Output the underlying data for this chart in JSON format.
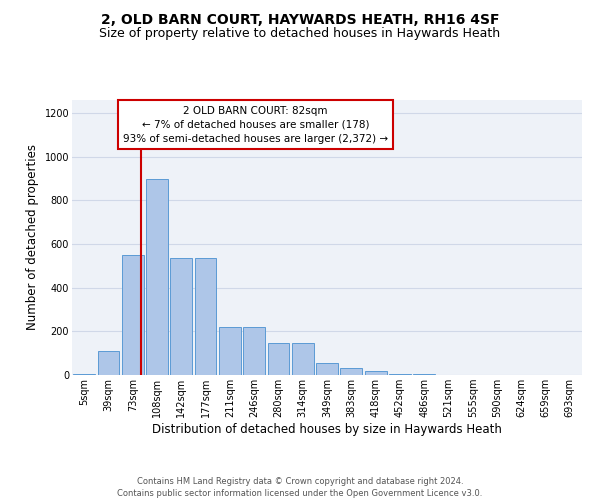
{
  "title_line1": "2, OLD BARN COURT, HAYWARDS HEATH, RH16 4SF",
  "title_line2": "Size of property relative to detached houses in Haywards Heath",
  "xlabel": "Distribution of detached houses by size in Haywards Heath",
  "ylabel": "Number of detached properties",
  "footnote": "Contains HM Land Registry data © Crown copyright and database right 2024.\nContains public sector information licensed under the Open Government Licence v3.0.",
  "bin_labels": [
    "5sqm",
    "39sqm",
    "73sqm",
    "108sqm",
    "142sqm",
    "177sqm",
    "211sqm",
    "246sqm",
    "280sqm",
    "314sqm",
    "349sqm",
    "383sqm",
    "418sqm",
    "452sqm",
    "486sqm",
    "521sqm",
    "555sqm",
    "590sqm",
    "624sqm",
    "659sqm",
    "693sqm"
  ],
  "bar_heights": [
    5,
    110,
    550,
    900,
    535,
    535,
    220,
    220,
    145,
    145,
    55,
    30,
    20,
    5,
    5,
    0,
    0,
    0,
    0,
    0,
    0
  ],
  "bar_color": "#aec6e8",
  "bar_edge_color": "#5b9bd5",
  "property_line_x": 2.35,
  "property_line_color": "#cc0000",
  "annotation_title": "2 OLD BARN COURT: 82sqm",
  "annotation_line1": "← 7% of detached houses are smaller (178)",
  "annotation_line2": "93% of semi-detached houses are larger (2,372) →",
  "annotation_box_color": "#cc0000",
  "ylim": [
    0,
    1260
  ],
  "yticks": [
    0,
    200,
    400,
    600,
    800,
    1000,
    1200
  ],
  "grid_color": "#d0d8e8",
  "background_color": "#eef2f8",
  "title1_fontsize": 10,
  "title2_fontsize": 9,
  "footnote_fontsize": 6,
  "xlabel_fontsize": 8.5,
  "ylabel_fontsize": 8.5,
  "annot_fontsize": 7.5,
  "tick_fontsize": 7
}
